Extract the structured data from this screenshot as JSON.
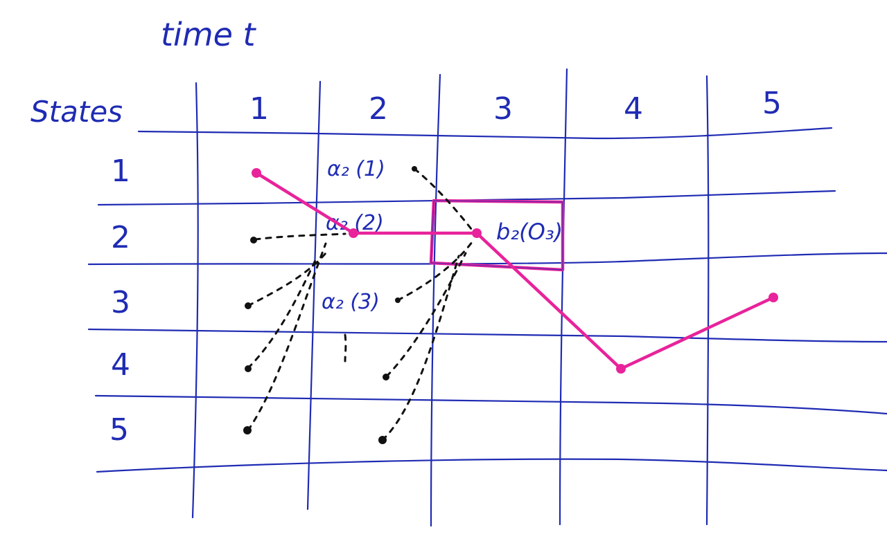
{
  "title": "time t",
  "states_label": "States",
  "time_steps": [
    "1",
    "2",
    "3",
    "4",
    "5"
  ],
  "states": [
    "1",
    "2",
    "3",
    "4",
    "5"
  ],
  "annotations": {
    "alpha_1": "α₂ (1)",
    "alpha_2": "α₂ (2)",
    "alpha_3": "α₂ (3)",
    "emission": "b₂(O₃)"
  },
  "colors": {
    "ink": "#1f2bb3",
    "path": "#e8239b",
    "dots": "#111111",
    "paper": "#ffffff"
  },
  "highlighted_path": [
    {
      "time": 1,
      "state": 1
    },
    {
      "time": 2,
      "state": 2
    },
    {
      "time": 3,
      "state": 2
    },
    {
      "time": 4,
      "state": 4
    },
    {
      "time": 5,
      "state": 3
    }
  ]
}
